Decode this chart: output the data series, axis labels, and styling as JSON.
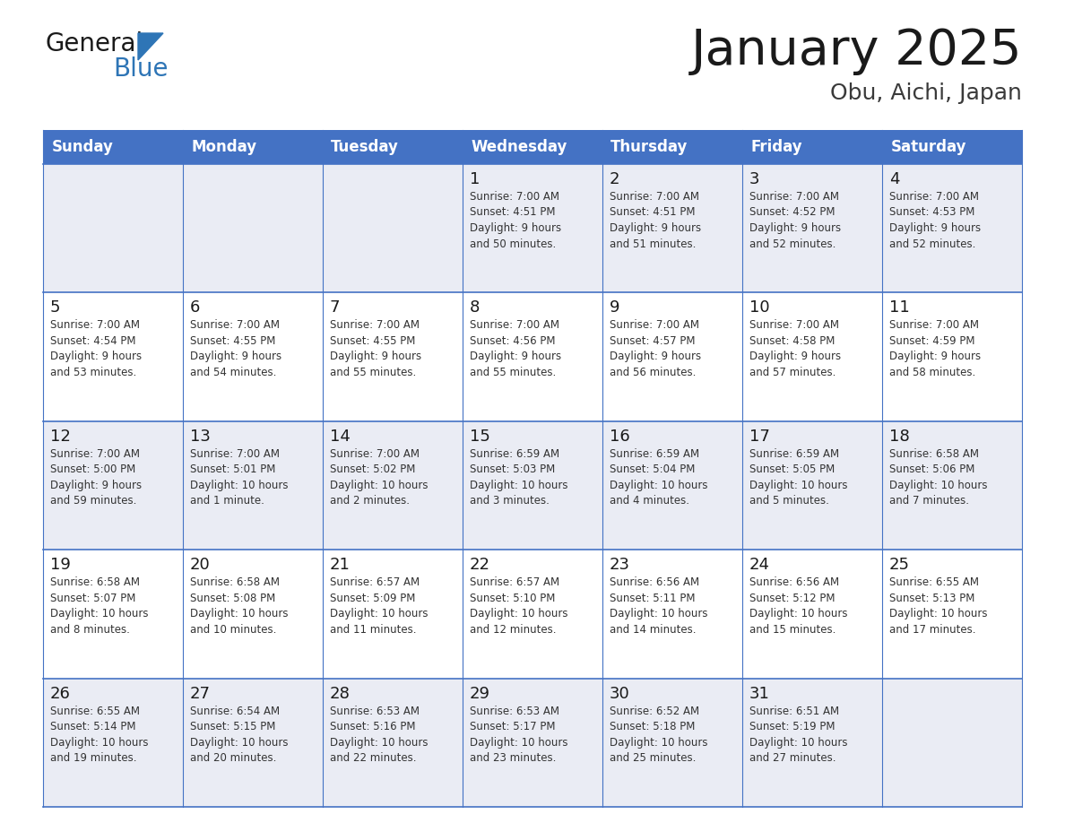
{
  "title": "January 2025",
  "subtitle": "Obu, Aichi, Japan",
  "header_bg_color": "#4472C4",
  "header_text_color": "#FFFFFF",
  "cell_bg_color_even": "#EAECF4",
  "cell_bg_color_odd": "#FFFFFF",
  "border_color": "#4472C4",
  "day_names": [
    "Sunday",
    "Monday",
    "Tuesday",
    "Wednesday",
    "Thursday",
    "Friday",
    "Saturday"
  ],
  "title_color": "#1a1a1a",
  "subtitle_color": "#3a3a3a",
  "day_number_color": "#1a1a1a",
  "text_color": "#333333",
  "logo_general_color": "#1a1a1a",
  "logo_blue_color": "#2e75b6",
  "logo_triangle_color": "#2e75b6",
  "calendar": [
    [
      {
        "day": null,
        "info": ""
      },
      {
        "day": null,
        "info": ""
      },
      {
        "day": null,
        "info": ""
      },
      {
        "day": 1,
        "info": "Sunrise: 7:00 AM\nSunset: 4:51 PM\nDaylight: 9 hours\nand 50 minutes."
      },
      {
        "day": 2,
        "info": "Sunrise: 7:00 AM\nSunset: 4:51 PM\nDaylight: 9 hours\nand 51 minutes."
      },
      {
        "day": 3,
        "info": "Sunrise: 7:00 AM\nSunset: 4:52 PM\nDaylight: 9 hours\nand 52 minutes."
      },
      {
        "day": 4,
        "info": "Sunrise: 7:00 AM\nSunset: 4:53 PM\nDaylight: 9 hours\nand 52 minutes."
      }
    ],
    [
      {
        "day": 5,
        "info": "Sunrise: 7:00 AM\nSunset: 4:54 PM\nDaylight: 9 hours\nand 53 minutes."
      },
      {
        "day": 6,
        "info": "Sunrise: 7:00 AM\nSunset: 4:55 PM\nDaylight: 9 hours\nand 54 minutes."
      },
      {
        "day": 7,
        "info": "Sunrise: 7:00 AM\nSunset: 4:55 PM\nDaylight: 9 hours\nand 55 minutes."
      },
      {
        "day": 8,
        "info": "Sunrise: 7:00 AM\nSunset: 4:56 PM\nDaylight: 9 hours\nand 55 minutes."
      },
      {
        "day": 9,
        "info": "Sunrise: 7:00 AM\nSunset: 4:57 PM\nDaylight: 9 hours\nand 56 minutes."
      },
      {
        "day": 10,
        "info": "Sunrise: 7:00 AM\nSunset: 4:58 PM\nDaylight: 9 hours\nand 57 minutes."
      },
      {
        "day": 11,
        "info": "Sunrise: 7:00 AM\nSunset: 4:59 PM\nDaylight: 9 hours\nand 58 minutes."
      }
    ],
    [
      {
        "day": 12,
        "info": "Sunrise: 7:00 AM\nSunset: 5:00 PM\nDaylight: 9 hours\nand 59 minutes."
      },
      {
        "day": 13,
        "info": "Sunrise: 7:00 AM\nSunset: 5:01 PM\nDaylight: 10 hours\nand 1 minute."
      },
      {
        "day": 14,
        "info": "Sunrise: 7:00 AM\nSunset: 5:02 PM\nDaylight: 10 hours\nand 2 minutes."
      },
      {
        "day": 15,
        "info": "Sunrise: 6:59 AM\nSunset: 5:03 PM\nDaylight: 10 hours\nand 3 minutes."
      },
      {
        "day": 16,
        "info": "Sunrise: 6:59 AM\nSunset: 5:04 PM\nDaylight: 10 hours\nand 4 minutes."
      },
      {
        "day": 17,
        "info": "Sunrise: 6:59 AM\nSunset: 5:05 PM\nDaylight: 10 hours\nand 5 minutes."
      },
      {
        "day": 18,
        "info": "Sunrise: 6:58 AM\nSunset: 5:06 PM\nDaylight: 10 hours\nand 7 minutes."
      }
    ],
    [
      {
        "day": 19,
        "info": "Sunrise: 6:58 AM\nSunset: 5:07 PM\nDaylight: 10 hours\nand 8 minutes."
      },
      {
        "day": 20,
        "info": "Sunrise: 6:58 AM\nSunset: 5:08 PM\nDaylight: 10 hours\nand 10 minutes."
      },
      {
        "day": 21,
        "info": "Sunrise: 6:57 AM\nSunset: 5:09 PM\nDaylight: 10 hours\nand 11 minutes."
      },
      {
        "day": 22,
        "info": "Sunrise: 6:57 AM\nSunset: 5:10 PM\nDaylight: 10 hours\nand 12 minutes."
      },
      {
        "day": 23,
        "info": "Sunrise: 6:56 AM\nSunset: 5:11 PM\nDaylight: 10 hours\nand 14 minutes."
      },
      {
        "day": 24,
        "info": "Sunrise: 6:56 AM\nSunset: 5:12 PM\nDaylight: 10 hours\nand 15 minutes."
      },
      {
        "day": 25,
        "info": "Sunrise: 6:55 AM\nSunset: 5:13 PM\nDaylight: 10 hours\nand 17 minutes."
      }
    ],
    [
      {
        "day": 26,
        "info": "Sunrise: 6:55 AM\nSunset: 5:14 PM\nDaylight: 10 hours\nand 19 minutes."
      },
      {
        "day": 27,
        "info": "Sunrise: 6:54 AM\nSunset: 5:15 PM\nDaylight: 10 hours\nand 20 minutes."
      },
      {
        "day": 28,
        "info": "Sunrise: 6:53 AM\nSunset: 5:16 PM\nDaylight: 10 hours\nand 22 minutes."
      },
      {
        "day": 29,
        "info": "Sunrise: 6:53 AM\nSunset: 5:17 PM\nDaylight: 10 hours\nand 23 minutes."
      },
      {
        "day": 30,
        "info": "Sunrise: 6:52 AM\nSunset: 5:18 PM\nDaylight: 10 hours\nand 25 minutes."
      },
      {
        "day": 31,
        "info": "Sunrise: 6:51 AM\nSunset: 5:19 PM\nDaylight: 10 hours\nand 27 minutes."
      },
      {
        "day": null,
        "info": ""
      }
    ]
  ]
}
